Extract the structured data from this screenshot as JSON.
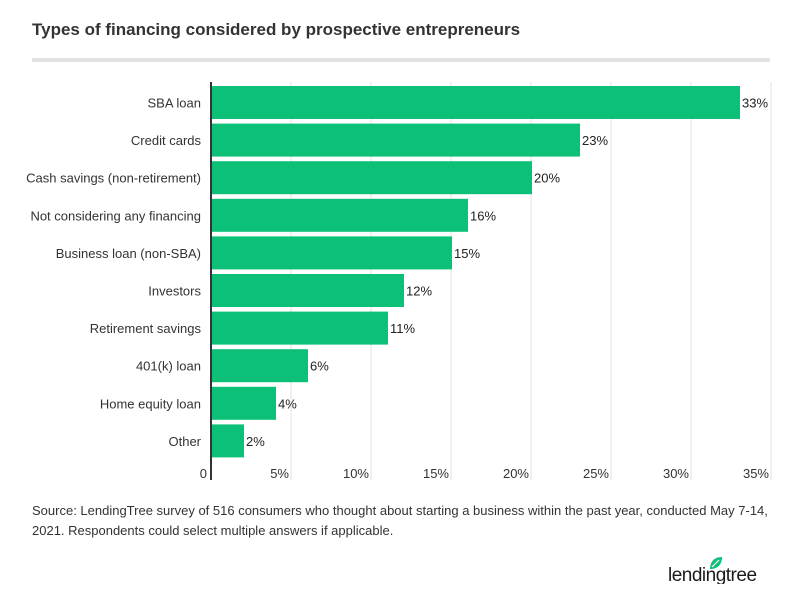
{
  "chart_data": {
    "type": "bar",
    "orientation": "horizontal",
    "title": "Types of financing considered by prospective entrepreneurs",
    "categories": [
      "SBA loan",
      "Credit cards",
      "Cash savings (non-retirement)",
      "Not considering any financing",
      "Business loan (non-SBA)",
      "Investors",
      "Retirement savings",
      "401(k) loan",
      "Home equity loan",
      "Other"
    ],
    "values": [
      33,
      23,
      20,
      16,
      15,
      12,
      11,
      6,
      4,
      2
    ],
    "data_labels": [
      "33%",
      "23%",
      "20%",
      "16%",
      "15%",
      "12%",
      "11%",
      "6%",
      "4%",
      "2%"
    ],
    "xlim": [
      0,
      35
    ],
    "x_ticks": [
      0,
      5,
      10,
      15,
      20,
      25,
      30,
      35
    ],
    "x_tick_labels": [
      "0",
      "5%",
      "10%",
      "15%",
      "20%",
      "25%",
      "30%",
      "35%"
    ],
    "grid": "vertical",
    "bar_color": "#0cc177",
    "source": "Source: LendingTree survey of 516 consumers who thought about starting a business within the past year, conducted May 7-14, 2021. Respondents could select multiple answers if applicable."
  },
  "logo": {
    "text": "lendingtree",
    "color": "#0cc177"
  }
}
